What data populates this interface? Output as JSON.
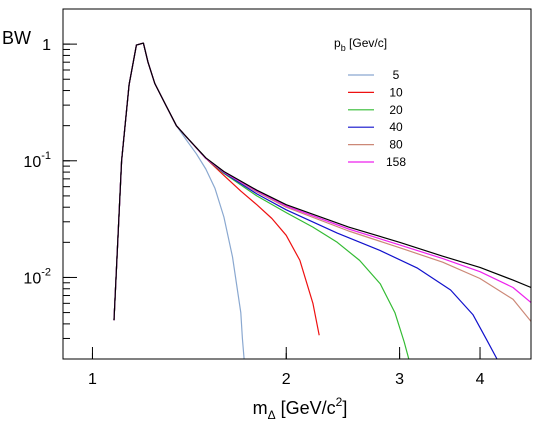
{
  "chart_data": {
    "type": "line",
    "xlabel": {
      "main": "m",
      "sub": "Δ",
      "unit_pre": " [GeV/c",
      "sup": "2",
      "unit_post": "]"
    },
    "ylabel": "BW",
    "x_scale": "log",
    "y_scale": "log",
    "xlim": [
      0.9,
      4.8
    ],
    "ylim": [
      0.002,
      2.0
    ],
    "x_ticks": [
      {
        "value": 1,
        "label": "1"
      },
      {
        "value": 2,
        "label": "2"
      },
      {
        "value": 3,
        "label": "3"
      },
      {
        "value": 4,
        "label": "4"
      }
    ],
    "y_ticks": [
      {
        "value": 1,
        "base": "1",
        "exp": ""
      },
      {
        "value": 0.1,
        "base": "10",
        "exp": "-1"
      },
      {
        "value": 0.01,
        "base": "10",
        "exp": "-2"
      }
    ],
    "grid": false,
    "legend": {
      "placement": "top-right",
      "title_main": "p",
      "title_sub": "b",
      "title_unit": " [Gev/c]"
    },
    "series": [
      {
        "name": "5",
        "color": "#8aa8d0",
        "x": [
          1.08,
          1.11,
          1.14,
          1.17,
          1.2,
          1.22,
          1.25,
          1.3,
          1.35,
          1.4,
          1.45,
          1.5,
          1.55,
          1.6,
          1.65,
          1.7,
          1.71,
          1.72
        ],
        "y": [
          0.0043,
          0.1,
          0.45,
          0.98,
          1.02,
          0.7,
          0.46,
          0.3,
          0.2,
          0.15,
          0.115,
          0.085,
          0.058,
          0.033,
          0.015,
          0.005,
          0.003,
          0.002
        ]
      },
      {
        "name": "10",
        "color": "#ee1111",
        "x": [
          1.08,
          1.11,
          1.14,
          1.17,
          1.2,
          1.22,
          1.25,
          1.3,
          1.35,
          1.4,
          1.5,
          1.6,
          1.7,
          1.8,
          1.9,
          2.0,
          2.1,
          2.2,
          2.25
        ],
        "y": [
          0.0043,
          0.1,
          0.45,
          0.98,
          1.02,
          0.7,
          0.46,
          0.3,
          0.2,
          0.16,
          0.105,
          0.075,
          0.055,
          0.042,
          0.032,
          0.023,
          0.014,
          0.006,
          0.0032
        ]
      },
      {
        "name": "20",
        "color": "#33bb33",
        "x": [
          1.08,
          1.11,
          1.14,
          1.17,
          1.2,
          1.22,
          1.25,
          1.3,
          1.35,
          1.4,
          1.5,
          1.6,
          1.8,
          2.0,
          2.2,
          2.4,
          2.6,
          2.8,
          2.95,
          3.05,
          3.1
        ],
        "y": [
          0.0043,
          0.1,
          0.45,
          0.98,
          1.02,
          0.7,
          0.46,
          0.3,
          0.2,
          0.16,
          0.105,
          0.078,
          0.05,
          0.036,
          0.027,
          0.02,
          0.014,
          0.0088,
          0.005,
          0.0028,
          0.002
        ]
      },
      {
        "name": "40",
        "color": "#1111cc",
        "x": [
          1.08,
          1.11,
          1.14,
          1.17,
          1.2,
          1.22,
          1.25,
          1.3,
          1.35,
          1.4,
          1.5,
          1.6,
          1.8,
          2.0,
          2.4,
          2.8,
          3.2,
          3.6,
          3.9,
          4.1,
          4.25
        ],
        "y": [
          0.0043,
          0.1,
          0.45,
          0.98,
          1.02,
          0.7,
          0.46,
          0.3,
          0.2,
          0.16,
          0.105,
          0.079,
          0.052,
          0.038,
          0.024,
          0.017,
          0.012,
          0.0078,
          0.0048,
          0.0029,
          0.002
        ]
      },
      {
        "name": "80",
        "color": "#cc8877",
        "x": [
          1.08,
          1.11,
          1.14,
          1.17,
          1.2,
          1.22,
          1.25,
          1.3,
          1.35,
          1.4,
          1.5,
          1.6,
          1.8,
          2.0,
          2.5,
          3.0,
          3.5,
          4.0,
          4.5,
          4.8
        ],
        "y": [
          0.0043,
          0.1,
          0.45,
          0.98,
          1.02,
          0.7,
          0.46,
          0.3,
          0.2,
          0.16,
          0.105,
          0.08,
          0.054,
          0.04,
          0.025,
          0.018,
          0.0135,
          0.0098,
          0.0065,
          0.0042
        ]
      },
      {
        "name": "158",
        "color": "#ee22ee",
        "x": [
          1.08,
          1.11,
          1.14,
          1.17,
          1.2,
          1.22,
          1.25,
          1.3,
          1.35,
          1.4,
          1.5,
          1.6,
          1.8,
          2.0,
          2.5,
          3.0,
          3.5,
          4.0,
          4.5,
          4.8
        ],
        "y": [
          0.0043,
          0.1,
          0.45,
          0.98,
          1.02,
          0.7,
          0.46,
          0.3,
          0.2,
          0.16,
          0.105,
          0.08,
          0.055,
          0.041,
          0.026,
          0.019,
          0.0145,
          0.0112,
          0.0082,
          0.0061
        ]
      },
      {
        "name": "",
        "color": "#000000",
        "x": [
          1.08,
          1.11,
          1.14,
          1.17,
          1.2,
          1.22,
          1.25,
          1.3,
          1.35,
          1.4,
          1.5,
          1.6,
          1.8,
          2.0,
          2.5,
          3.0,
          3.5,
          4.0,
          4.5,
          4.8
        ],
        "y": [
          0.0043,
          0.1,
          0.45,
          0.98,
          1.02,
          0.7,
          0.46,
          0.3,
          0.2,
          0.16,
          0.106,
          0.081,
          0.056,
          0.042,
          0.027,
          0.02,
          0.0152,
          0.0122,
          0.0095,
          0.0082
        ]
      }
    ]
  }
}
